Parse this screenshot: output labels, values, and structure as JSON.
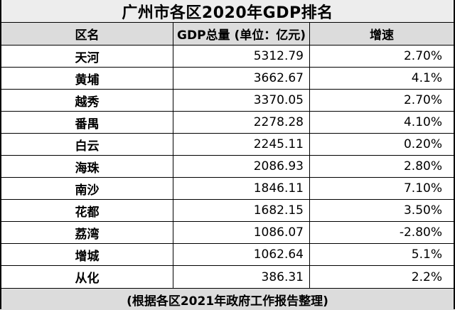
{
  "title": "广州市各区2020年GDP排名",
  "headers": {
    "district": "区名",
    "gdp": "GDP总量 (单位：亿元)",
    "growth": "增速"
  },
  "rows": [
    {
      "district": "天河",
      "gdp": "5312.79",
      "growth": "2.70%"
    },
    {
      "district": "黄埔",
      "gdp": "3662.67",
      "growth": "4.1%"
    },
    {
      "district": "越秀",
      "gdp": "3370.05",
      "growth": "2.70%"
    },
    {
      "district": "番禺",
      "gdp": "2278.28",
      "growth": "4.10%"
    },
    {
      "district": "白云",
      "gdp": "2245.11",
      "growth": "0.20%"
    },
    {
      "district": "海珠",
      "gdp": "2086.93",
      "growth": "2.80%"
    },
    {
      "district": "南沙",
      "gdp": "1846.11",
      "growth": "7.10%"
    },
    {
      "district": "花都",
      "gdp": "1682.15",
      "growth": "3.50%"
    },
    {
      "district": "荔湾",
      "gdp": "1086.07",
      "growth": "-2.80%"
    },
    {
      "district": "增城",
      "gdp": "1062.64",
      "growth": "5.1%"
    },
    {
      "district": "从化",
      "gdp": "386.31",
      "growth": "2.2%"
    }
  ],
  "footer": "(根据各区2021年政府工作报告整理)",
  "colors": {
    "header_bg": "#dcdcdc",
    "title_bg": "#ededed",
    "border": "#000000"
  }
}
